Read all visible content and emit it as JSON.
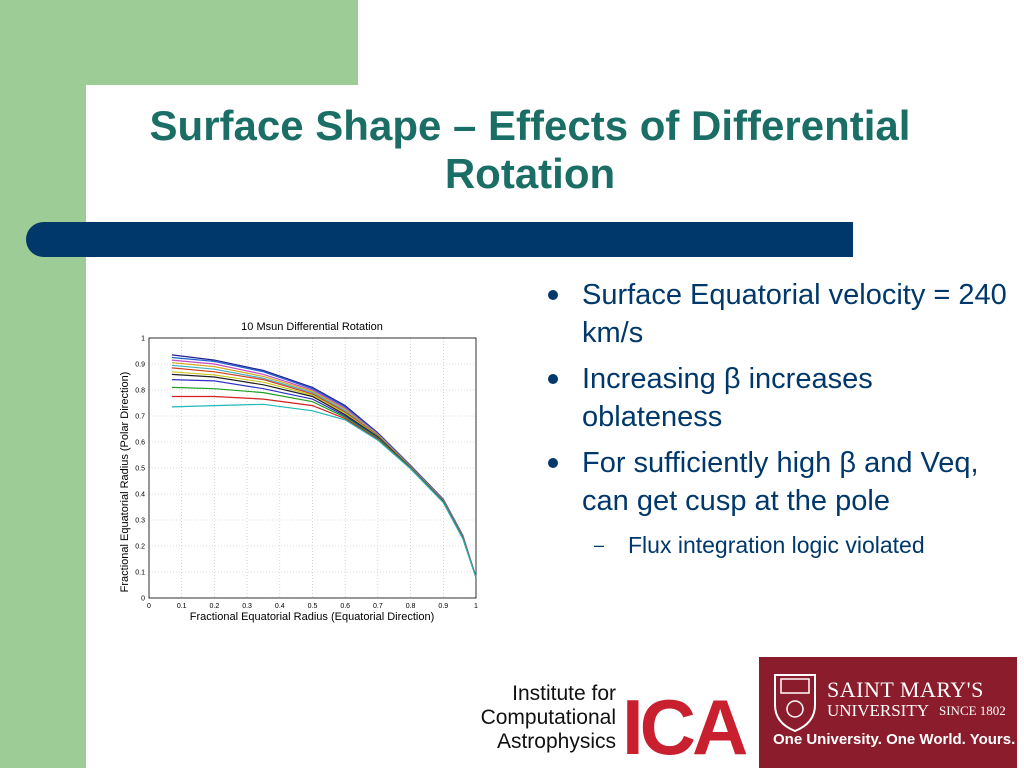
{
  "slide": {
    "title": "Surface Shape – Effects of Differential Rotation",
    "colors": {
      "accent_green": "#9dcc97",
      "title_teal": "#1a6e66",
      "band_blue": "#00386b",
      "smu_red": "#8b1c2c",
      "ica_red": "#c8202f"
    }
  },
  "bullets": [
    {
      "text": "Surface Equatorial velocity = 240 km/s"
    },
    {
      "text": "Increasing β increases oblateness"
    },
    {
      "text": "For sufficiently high β and Veq, can get cusp at the pole",
      "sub": [
        {
          "text": "Flux integration logic violated"
        }
      ]
    }
  ],
  "logos": {
    "ica": {
      "line1": "Institute for",
      "line2": "Computational",
      "line3": "Astrophysics",
      "mark": "ICA"
    },
    "smu": {
      "name_top": "SAINT MARY'S",
      "name_bottom": "UNIVERSITY",
      "since": "SINCE 1802",
      "tagline": "One University. One World. Yours."
    }
  },
  "chart_data": {
    "type": "line",
    "title": "10 Msun  Differential Rotation",
    "xlabel": "Fractional Equatorial Radius (Equatorial Direction)",
    "ylabel": "Fractional Equatorial Radius (Polar Direction)",
    "xlim": [
      0,
      1
    ],
    "ylim": [
      0,
      1
    ],
    "xticks": [
      "0",
      "0.1",
      "0.2",
      "0.3",
      "0.4",
      "0.5",
      "0.6",
      "0.7",
      "0.8",
      "0.9",
      "1"
    ],
    "yticks": [
      "0",
      "0.1",
      "0.2",
      "0.3",
      "0.4",
      "0.5",
      "0.6",
      "0.7",
      "0.8",
      "0.9",
      "1"
    ],
    "grid": true,
    "series": [
      {
        "color": "#1f1f8f",
        "x": [
          0.07,
          0.2,
          0.35,
          0.5,
          0.6,
          0.7,
          0.8,
          0.9,
          0.96,
          1.0
        ],
        "y": [
          0.935,
          0.915,
          0.875,
          0.81,
          0.74,
          0.635,
          0.51,
          0.38,
          0.24,
          0.08
        ]
      },
      {
        "color": "#1d5fd0",
        "x": [
          0.07,
          0.2,
          0.35,
          0.5,
          0.6,
          0.7,
          0.8,
          0.9,
          0.96,
          1.0
        ],
        "y": [
          0.925,
          0.91,
          0.87,
          0.805,
          0.735,
          0.632,
          0.508,
          0.378,
          0.238,
          0.08
        ]
      },
      {
        "color": "#c44cc4",
        "x": [
          0.07,
          0.2,
          0.35,
          0.5,
          0.6,
          0.7,
          0.8,
          0.9,
          0.96,
          1.0
        ],
        "y": [
          0.915,
          0.9,
          0.86,
          0.8,
          0.73,
          0.63,
          0.506,
          0.376,
          0.236,
          0.08
        ]
      },
      {
        "color": "#d8a820",
        "x": [
          0.07,
          0.2,
          0.35,
          0.5,
          0.6,
          0.7,
          0.8,
          0.9,
          0.96,
          1.0
        ],
        "y": [
          0.905,
          0.89,
          0.852,
          0.795,
          0.725,
          0.628,
          0.505,
          0.375,
          0.235,
          0.08
        ]
      },
      {
        "color": "#40b0c8",
        "x": [
          0.07,
          0.2,
          0.35,
          0.5,
          0.6,
          0.7,
          0.8,
          0.9,
          0.96,
          1.0
        ],
        "y": [
          0.895,
          0.88,
          0.845,
          0.79,
          0.72,
          0.626,
          0.504,
          0.374,
          0.234,
          0.08
        ]
      },
      {
        "color": "#d04020",
        "x": [
          0.07,
          0.2,
          0.35,
          0.5,
          0.6,
          0.7,
          0.8,
          0.9,
          0.96,
          1.0
        ],
        "y": [
          0.885,
          0.87,
          0.84,
          0.785,
          0.715,
          0.624,
          0.503,
          0.373,
          0.233,
          0.08
        ]
      },
      {
        "color": "#c8c820",
        "x": [
          0.07,
          0.2,
          0.35,
          0.5,
          0.6,
          0.7,
          0.8,
          0.9,
          0.96,
          1.0
        ],
        "y": [
          0.87,
          0.858,
          0.83,
          0.78,
          0.71,
          0.622,
          0.502,
          0.372,
          0.232,
          0.08
        ]
      },
      {
        "color": "#202020",
        "x": [
          0.07,
          0.2,
          0.35,
          0.5,
          0.6,
          0.7,
          0.8,
          0.9,
          0.96,
          1.0
        ],
        "y": [
          0.86,
          0.85,
          0.82,
          0.775,
          0.705,
          0.62,
          0.501,
          0.371,
          0.231,
          0.08
        ]
      },
      {
        "color": "#3030c0",
        "x": [
          0.07,
          0.2,
          0.35,
          0.5,
          0.6,
          0.7,
          0.8,
          0.9,
          0.96,
          1.0
        ],
        "y": [
          0.84,
          0.835,
          0.805,
          0.765,
          0.7,
          0.617,
          0.5,
          0.37,
          0.23,
          0.08
        ]
      },
      {
        "color": "#20a020",
        "x": [
          0.07,
          0.2,
          0.35,
          0.5,
          0.6,
          0.7,
          0.8,
          0.9,
          0.96,
          1.0
        ],
        "y": [
          0.81,
          0.805,
          0.79,
          0.755,
          0.695,
          0.614,
          0.499,
          0.369,
          0.229,
          0.08
        ]
      },
      {
        "color": "#d02020",
        "x": [
          0.07,
          0.2,
          0.35,
          0.5,
          0.6,
          0.7,
          0.8,
          0.9,
          0.96,
          1.0
        ],
        "y": [
          0.775,
          0.775,
          0.765,
          0.74,
          0.69,
          0.61,
          0.498,
          0.368,
          0.228,
          0.08
        ]
      },
      {
        "color": "#20b8b8",
        "x": [
          0.07,
          0.2,
          0.35,
          0.5,
          0.6,
          0.7,
          0.8,
          0.9,
          0.96,
          1.0
        ],
        "y": [
          0.735,
          0.74,
          0.745,
          0.72,
          0.685,
          0.607,
          0.497,
          0.367,
          0.227,
          0.08
        ]
      }
    ]
  }
}
